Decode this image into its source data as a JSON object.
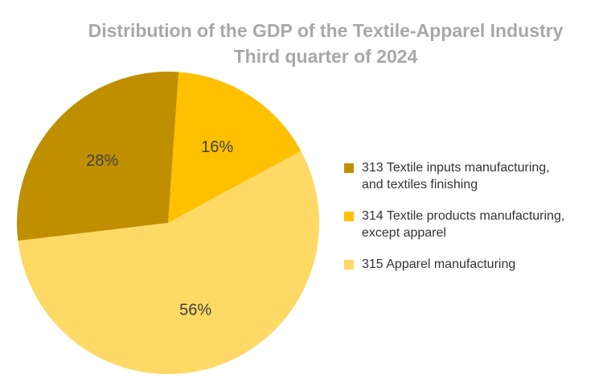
{
  "chart_data": {
    "type": "pie",
    "title": "Distribution of the GDP of the Textile-Apparel Industry",
    "subtitle": "Third quarter of 2024",
    "slices": [
      {
        "code": "313",
        "label_lines": [
          "313 Textile inputs manufacturing,",
          "and textiles finishing"
        ],
        "value": 28,
        "label": "28%",
        "color": "#bf8f00"
      },
      {
        "code": "314",
        "label_lines": [
          "314 Textile products manufacturing,",
          "except apparel"
        ],
        "value": 16,
        "label": "16%",
        "color": "#ffc000"
      },
      {
        "code": "315",
        "label_lines": [
          "315 Apparel manufacturing"
        ],
        "value": 56,
        "label": "56%",
        "color": "#ffd966"
      }
    ],
    "legend_position": "right"
  }
}
